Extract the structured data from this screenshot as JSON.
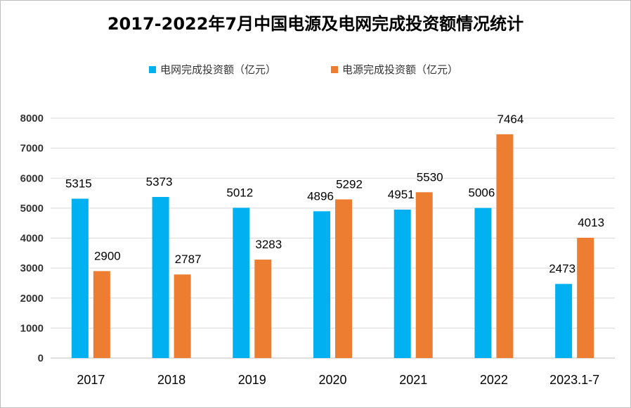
{
  "chart_data": {
    "type": "bar",
    "title": "2017-2022年7月中国电源及电网完成投资额情况统计",
    "categories": [
      "2017",
      "2018",
      "2019",
      "2020",
      "2021",
      "2022",
      "2023.1-7"
    ],
    "series": [
      {
        "name": "电网完成投资额（亿元）",
        "color": "#00b0f0",
        "values": [
          5315,
          5373,
          5012,
          4896,
          4951,
          5006,
          2473
        ]
      },
      {
        "name": "电源完成投资额（亿元）",
        "color": "#ed7d31",
        "values": [
          2900,
          2787,
          3283,
          5292,
          5530,
          7464,
          4013
        ]
      }
    ],
    "ylim": [
      0,
      8000
    ],
    "yticks": [
      0,
      1000,
      2000,
      3000,
      4000,
      5000,
      6000,
      7000,
      8000
    ],
    "grid": true,
    "legend": "top"
  }
}
